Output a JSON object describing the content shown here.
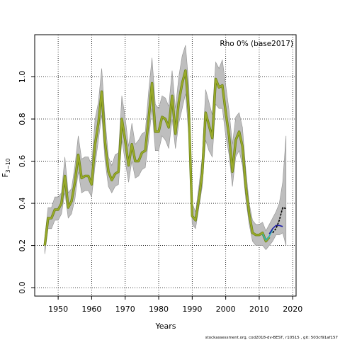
{
  "chart_data": {
    "type": "line",
    "xlabel": "Years",
    "ylabel": "F",
    "ylabel_subscript": "3−10",
    "legend_text": "Rho 0% (base2017)",
    "footer": "stockassessment.org, cod2018-dv-BEST, r10515 , git: 503cf91af157",
    "xlim": [
      1943,
      2021
    ],
    "ylim": [
      -0.04,
      1.2
    ],
    "x_ticks": [
      1950,
      1960,
      1970,
      1980,
      1990,
      2000,
      2010,
      2020
    ],
    "y_ticks": [
      0.0,
      0.2,
      0.4,
      0.6,
      0.8,
      1.0
    ],
    "y_tick_labels": [
      "0.0",
      "0.2",
      "0.4",
      "0.6",
      "0.8",
      "1.0"
    ],
    "grid": true,
    "legend_position": "top-right",
    "colors": {
      "band": "#bebebe",
      "band_outline": "#909090",
      "main_line": "#9aaa2a",
      "main_line_edge": "#5f7a10",
      "series_cyan": "#2ab5b5",
      "series_blue": "#2020a8",
      "series_black": "#000000",
      "grid": "#000000"
    },
    "ci_band": {
      "x": [
        1946,
        1947,
        1948,
        1949,
        1950,
        1951,
        1952,
        1953,
        1954,
        1955,
        1956,
        1957,
        1958,
        1959,
        1960,
        1961,
        1962,
        1963,
        1964,
        1965,
        1966,
        1967,
        1968,
        1969,
        1970,
        1971,
        1972,
        1973,
        1974,
        1975,
        1976,
        1977,
        1978,
        1979,
        1980,
        1981,
        1982,
        1983,
        1984,
        1985,
        1986,
        1987,
        1988,
        1989,
        1990,
        1991,
        1992,
        1993,
        1994,
        1995,
        1996,
        1997,
        1998,
        1999,
        2000,
        2001,
        2002,
        2003,
        2004,
        2005,
        2006,
        2007,
        2008,
        2009,
        2010,
        2011,
        2012,
        2013,
        2014,
        2015,
        2016,
        2017,
        2018
      ],
      "lower": [
        0.16,
        0.28,
        0.28,
        0.32,
        0.32,
        0.35,
        0.45,
        0.33,
        0.35,
        0.42,
        0.55,
        0.45,
        0.46,
        0.46,
        0.43,
        0.58,
        0.7,
        0.82,
        0.6,
        0.48,
        0.45,
        0.48,
        0.49,
        0.7,
        0.6,
        0.5,
        0.6,
        0.52,
        0.53,
        0.56,
        0.57,
        0.7,
        0.85,
        0.65,
        0.65,
        0.72,
        0.7,
        0.66,
        0.8,
        0.66,
        0.78,
        0.85,
        0.92,
        0.72,
        0.3,
        0.28,
        0.38,
        0.48,
        0.7,
        0.65,
        0.62,
        0.87,
        0.85,
        0.85,
        0.72,
        0.63,
        0.48,
        0.62,
        0.65,
        0.58,
        0.42,
        0.3,
        0.22,
        0.2,
        0.2,
        0.2,
        0.18,
        0.2,
        0.22,
        0.25,
        0.25,
        0.26,
        0.2
      ],
      "upper": [
        0.24,
        0.38,
        0.38,
        0.43,
        0.43,
        0.45,
        0.62,
        0.45,
        0.47,
        0.58,
        0.72,
        0.61,
        0.62,
        0.62,
        0.58,
        0.8,
        0.88,
        1.04,
        0.8,
        0.62,
        0.58,
        0.63,
        0.64,
        0.91,
        0.81,
        0.67,
        0.78,
        0.68,
        0.7,
        0.73,
        0.74,
        0.93,
        1.09,
        0.87,
        0.85,
        0.91,
        0.9,
        0.86,
        1.03,
        0.85,
        1.0,
        1.1,
        1.15,
        0.96,
        0.4,
        0.36,
        0.48,
        0.62,
        0.94,
        0.88,
        0.82,
        1.07,
        1.04,
        1.08,
        0.96,
        0.84,
        0.68,
        0.81,
        0.83,
        0.76,
        0.56,
        0.4,
        0.32,
        0.3,
        0.3,
        0.31,
        0.27,
        0.3,
        0.33,
        0.36,
        0.4,
        0.5,
        0.72
      ]
    },
    "series": [
      {
        "x": [
          1946,
          1947,
          1948,
          1949,
          1950,
          1951,
          1952,
          1953,
          1954,
          1955,
          1956,
          1957,
          1958,
          1959,
          1960,
          1961,
          1962,
          1963,
          1964,
          1965,
          1966,
          1967,
          1968,
          1969,
          1970,
          1971,
          1972,
          1973,
          1974,
          1975,
          1976,
          1977,
          1978,
          1979,
          1980,
          1981,
          1982,
          1983,
          1984,
          1985,
          1986,
          1987,
          1988,
          1989,
          1990,
          1991,
          1992,
          1993,
          1994,
          1995,
          1996,
          1997,
          1998,
          1999,
          2000,
          2001,
          2002,
          2003,
          2004,
          2005,
          2006,
          2007,
          2008,
          2009,
          2010,
          2011,
          2012,
          2013
        ],
        "values": [
          0.2,
          0.33,
          0.33,
          0.37,
          0.37,
          0.4,
          0.53,
          0.38,
          0.41,
          0.5,
          0.63,
          0.52,
          0.53,
          0.53,
          0.49,
          0.68,
          0.78,
          0.93,
          0.69,
          0.55,
          0.51,
          0.54,
          0.55,
          0.8,
          0.7,
          0.58,
          0.68,
          0.6,
          0.6,
          0.64,
          0.65,
          0.8,
          0.97,
          0.74,
          0.74,
          0.81,
          0.8,
          0.76,
          0.91,
          0.73,
          0.88,
          0.97,
          1.03,
          0.83,
          0.34,
          0.32,
          0.42,
          0.54,
          0.83,
          0.77,
          0.71,
          0.99,
          0.95,
          0.96,
          0.83,
          0.72,
          0.55,
          0.7,
          0.74,
          0.67,
          0.48,
          0.35,
          0.26,
          0.25,
          0.25,
          0.26,
          0.22,
          0.24
        ],
        "color_key": "main_line",
        "width": 2.2
      },
      {
        "x": [
          2011,
          2012,
          2013,
          2014
        ],
        "values": [
          0.255,
          0.225,
          0.245,
          0.275
        ],
        "color_key": "series_cyan",
        "width": 1.6
      },
      {
        "x": [
          2013,
          2014,
          2015,
          2016,
          2017
        ],
        "values": [
          0.255,
          0.28,
          0.295,
          0.295,
          0.29
        ],
        "color_key": "series_blue",
        "width": 1.6
      },
      {
        "x": [
          2014,
          2015,
          2016,
          2017,
          2018
        ],
        "values": [
          0.26,
          0.28,
          0.32,
          0.38,
          0.375
        ],
        "color_key": "series_black",
        "width": 1.6,
        "dashed": true
      }
    ]
  }
}
